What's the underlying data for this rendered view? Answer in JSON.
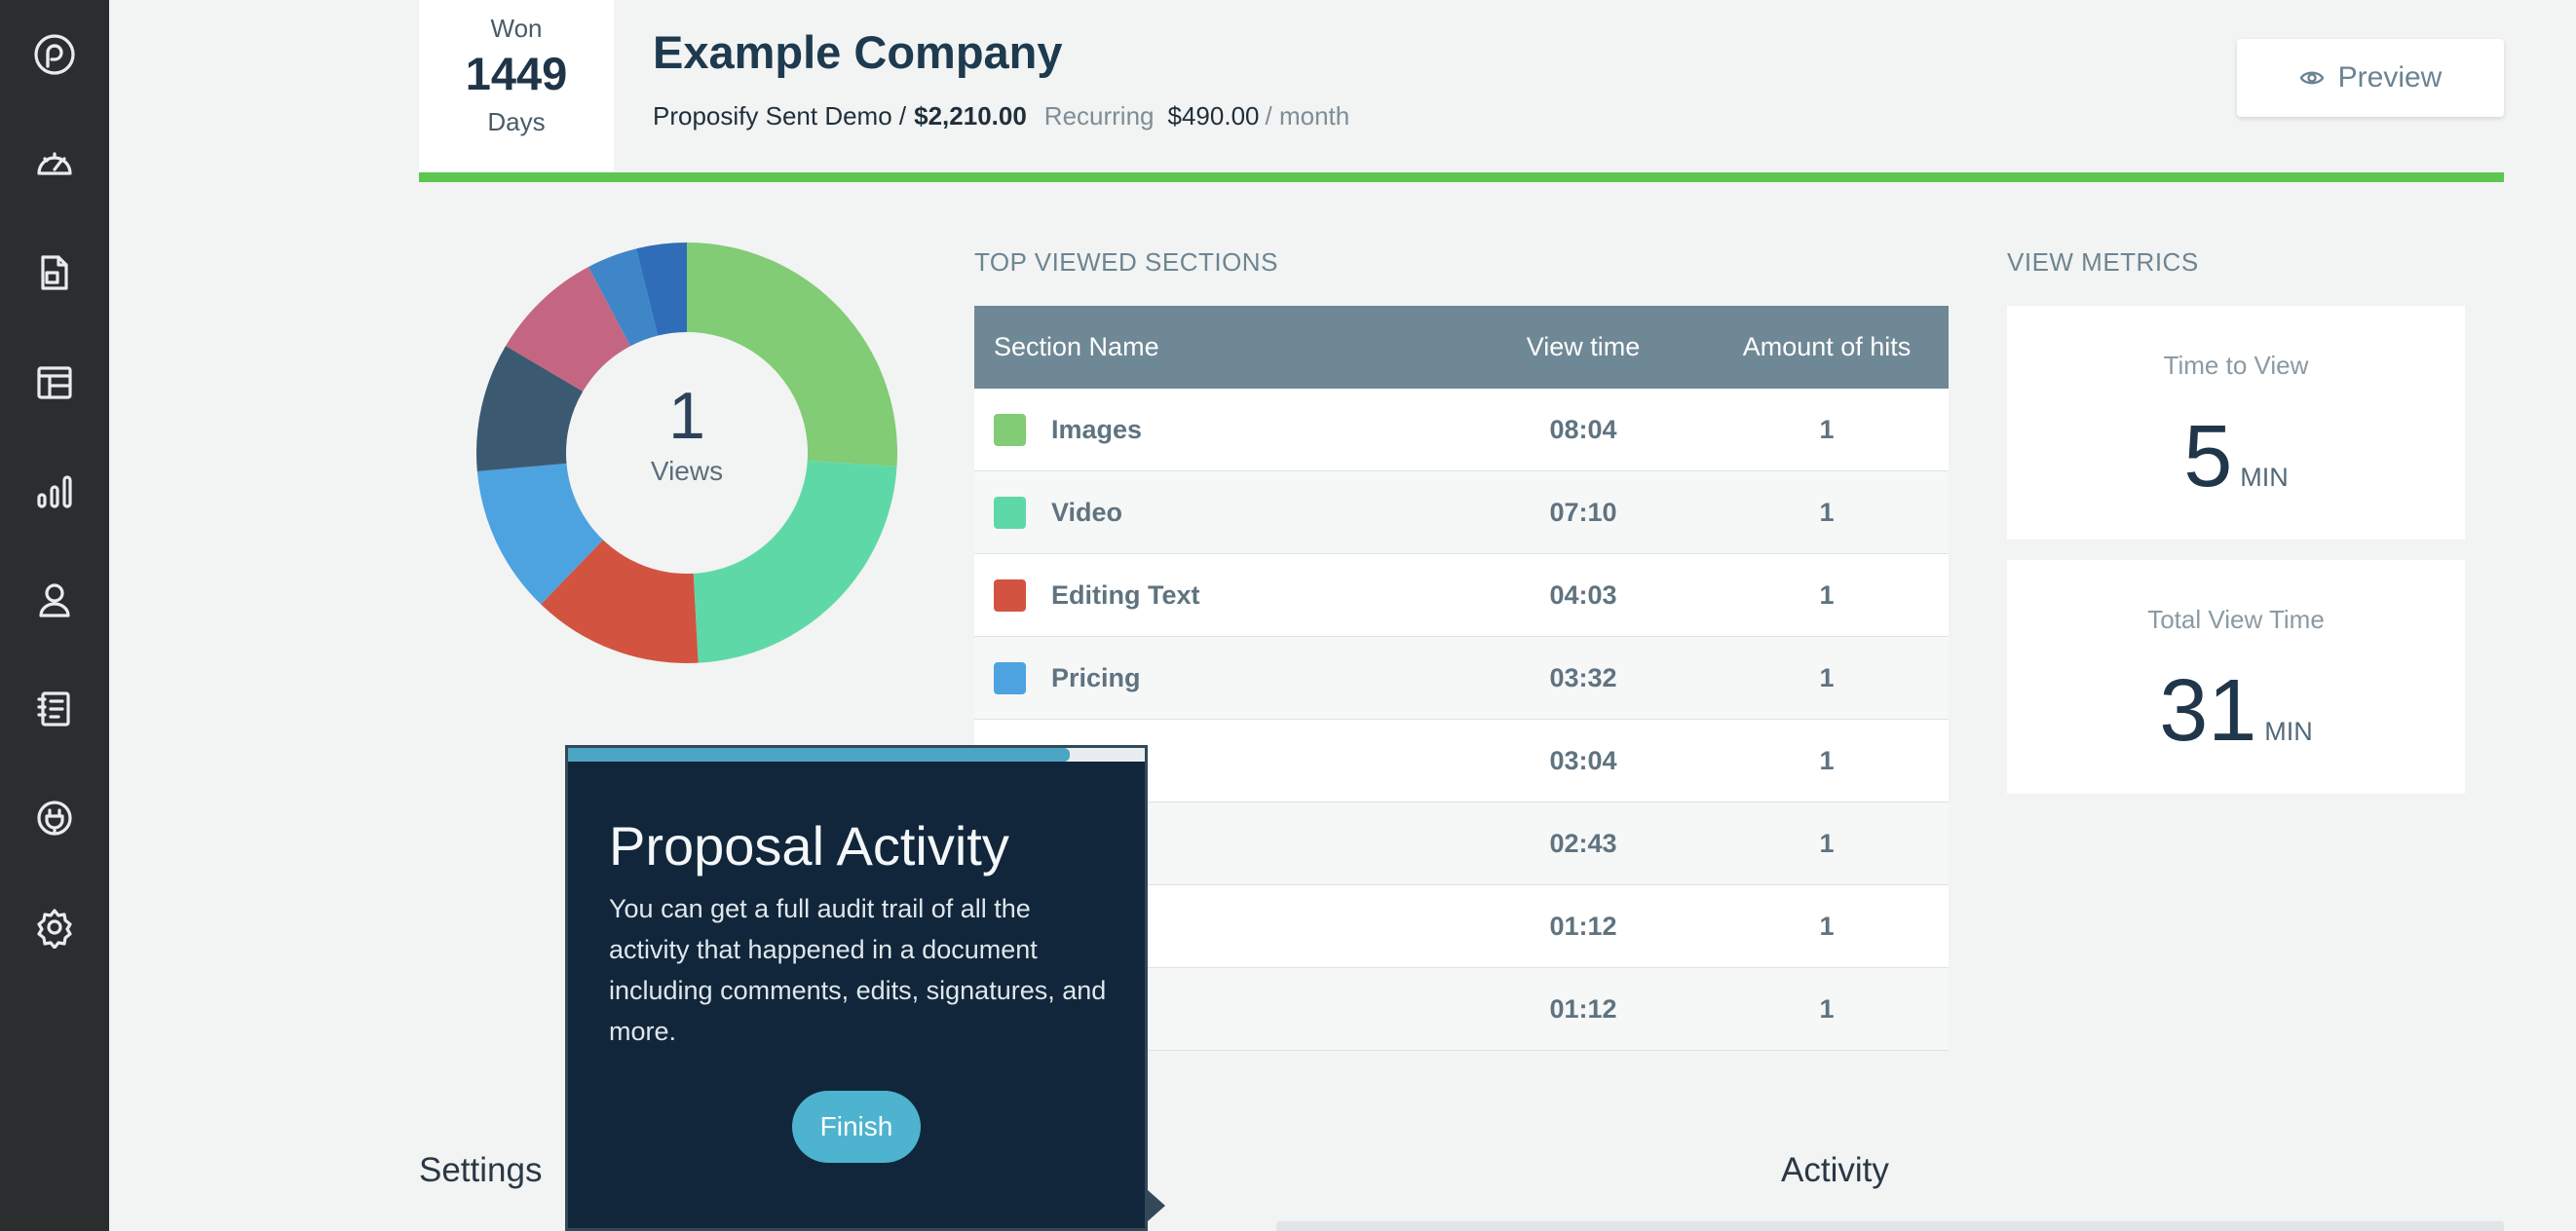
{
  "sidebar": {
    "items": [
      {
        "icon": "proposify-logo-icon"
      },
      {
        "icon": "dashboard-gauge-icon"
      },
      {
        "icon": "documents-icon"
      },
      {
        "icon": "templates-layout-icon"
      },
      {
        "icon": "reports-bar-chart-icon"
      },
      {
        "icon": "user-icon"
      },
      {
        "icon": "content-library-icon"
      },
      {
        "icon": "integrations-plug-icon"
      },
      {
        "icon": "settings-gear-icon"
      }
    ]
  },
  "header": {
    "won_label": "Won",
    "won_number": "1449",
    "won_unit": "Days",
    "company": "Example Company",
    "proposal_name": "Proposify Sent Demo /",
    "amount": "$2,210.00",
    "recurring_label": "Recurring",
    "recurring_amount": "$490.00",
    "recurring_period": "/ month",
    "preview_label": "Preview",
    "progress_color": "#5cc650"
  },
  "donut": {
    "count": "1",
    "label": "Views"
  },
  "chart_data": {
    "type": "pie",
    "title": "",
    "series": [
      {
        "name": "Images",
        "value": 484,
        "color": "#81cc74"
      },
      {
        "name": "Video",
        "value": 430,
        "color": "#5fd8a8"
      },
      {
        "name": "Editing Text",
        "value": 243,
        "color": "#d25440"
      },
      {
        "name": "Pricing",
        "value": 212,
        "color": "#4da3e0"
      },
      {
        "name": "",
        "value": 184,
        "color": "#3b5a72"
      },
      {
        "name": "",
        "value": 163,
        "color": "#c46682"
      },
      {
        "name": "",
        "value": 72,
        "color": "#3f86c9"
      },
      {
        "name": "",
        "value": 72,
        "color": "#2f6db9"
      }
    ]
  },
  "sections": {
    "heading": "TOP VIEWED SECTIONS",
    "columns": [
      "Section Name",
      "View time",
      "Amount of hits"
    ],
    "rows": [
      {
        "name": "Images",
        "time": "08:04",
        "hits": "1",
        "color": "#81cc74"
      },
      {
        "name": "Video",
        "time": "07:10",
        "hits": "1",
        "color": "#5fd8a8"
      },
      {
        "name": "Editing Text",
        "time": "04:03",
        "hits": "1",
        "color": "#d25440"
      },
      {
        "name": "Pricing",
        "time": "03:32",
        "hits": "1",
        "color": "#4da3e0"
      },
      {
        "name": "",
        "time": "03:04",
        "hits": "1",
        "color": "#3b5a72"
      },
      {
        "name": "",
        "time": "02:43",
        "hits": "1",
        "color": "#c46682"
      },
      {
        "name": "",
        "time": "01:12",
        "hits": "1",
        "color": "#3f86c9"
      },
      {
        "name": "",
        "time": "01:12",
        "hits": "1",
        "color": "#2f6db9"
      }
    ]
  },
  "metrics": {
    "heading": "VIEW METRICS",
    "time_to_view": {
      "label": "Time to View",
      "value": "5",
      "unit": "MIN"
    },
    "total_view_time": {
      "label": "Total View Time",
      "value": "31",
      "unit": "MIN"
    }
  },
  "bottom": {
    "settings": "Settings",
    "activity": "Activity"
  },
  "tour": {
    "title": "Proposal Activity",
    "body": "You can get a full audit trail of all the activity that happened in a document including comments, edits, signatures, and more.",
    "finish_label": "Finish",
    "progress": 0.87
  }
}
